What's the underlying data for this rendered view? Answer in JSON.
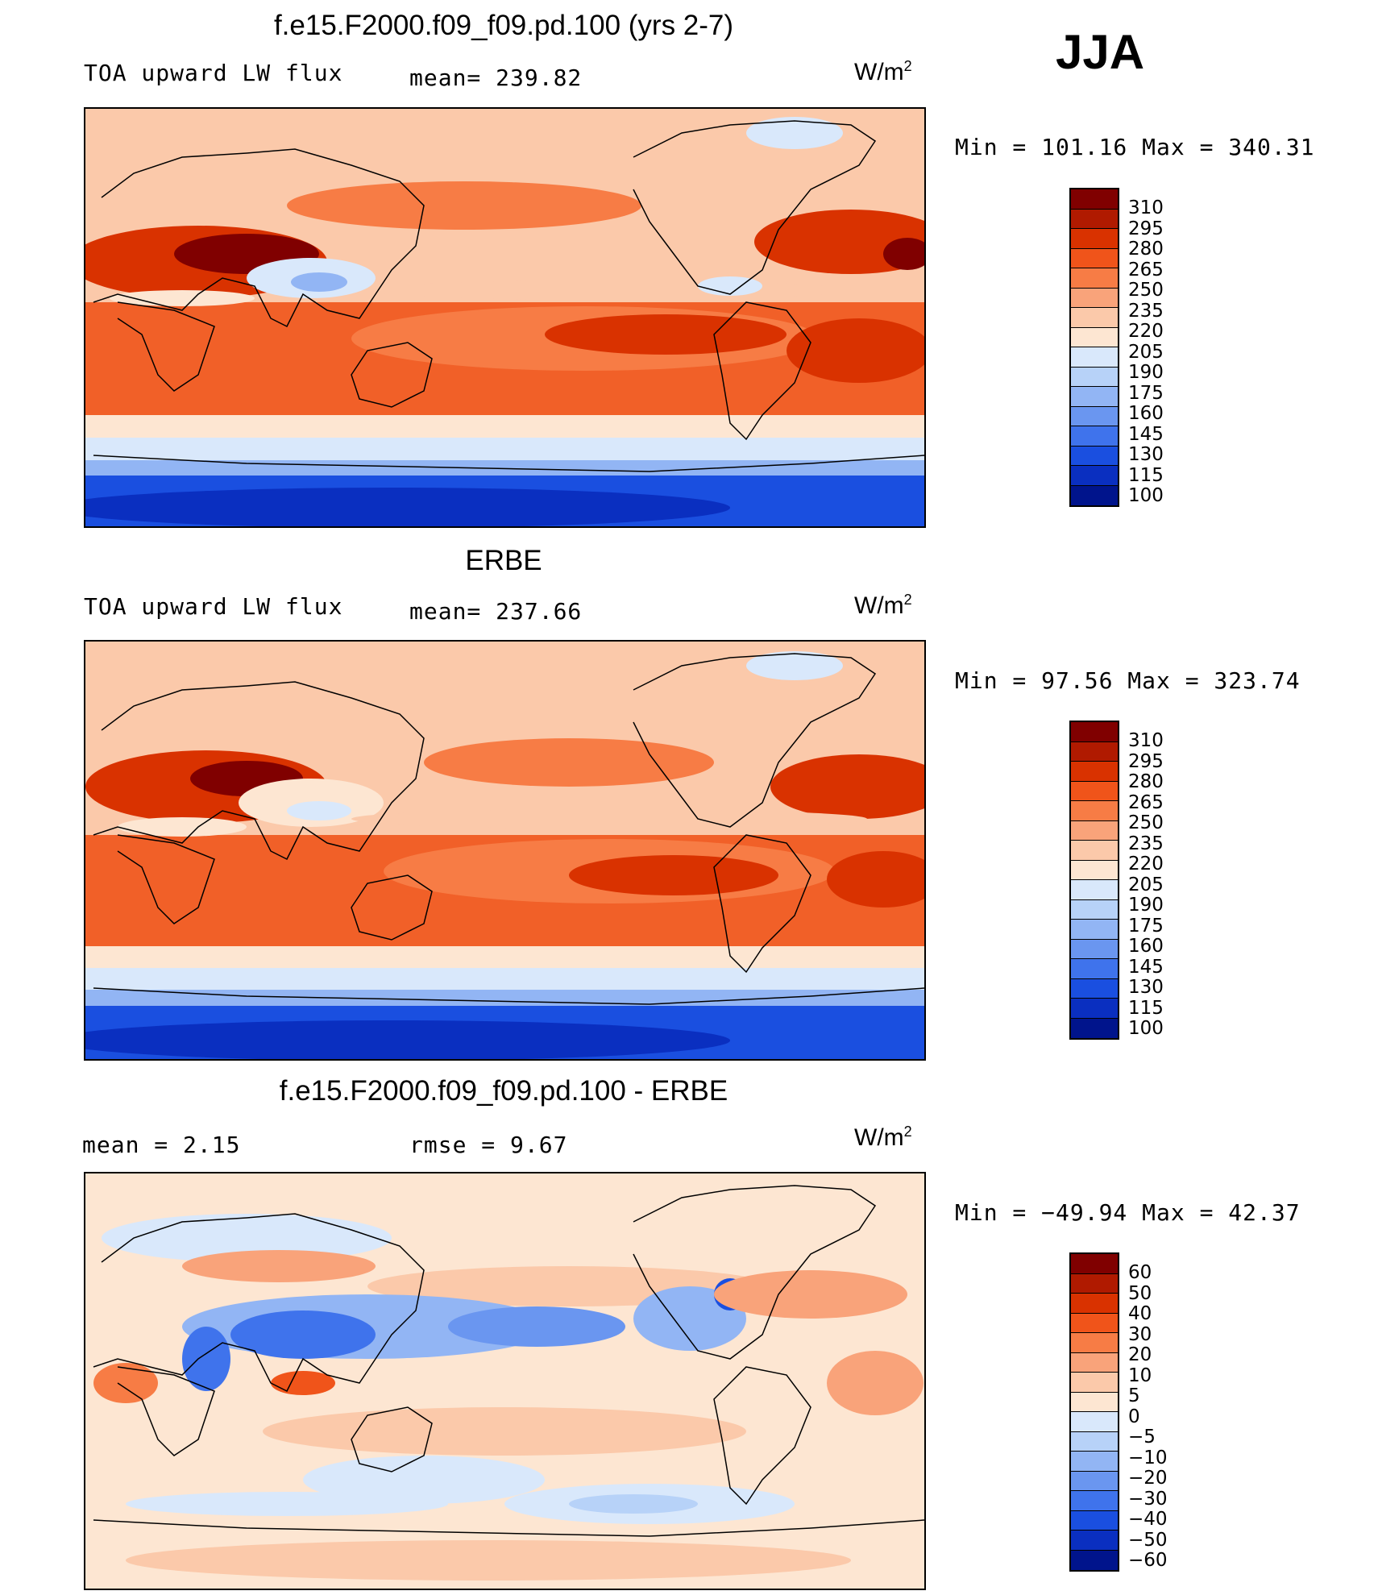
{
  "season": "JJA",
  "panels": [
    {
      "title": "f.e15.F2000.f09_f09.pd.100 (yrs 2-7)",
      "left_label": "TOA upward LW flux",
      "mean_label": "mean= 239.82",
      "units": "W/m",
      "units_exp": "2",
      "minmax": "Min  =  101.16 Max  =  340.31",
      "colorbar_labels": [
        "310",
        "295",
        "280",
        "265",
        "250",
        "235",
        "220",
        "205",
        "190",
        "175",
        "160",
        "145",
        "130",
        "115",
        "100"
      ]
    },
    {
      "title": "ERBE",
      "left_label": "TOA upward LW flux",
      "mean_label": "mean= 237.66",
      "units": "W/m",
      "units_exp": "2",
      "minmax": "Min  =   97.56 Max  =  323.74",
      "colorbar_labels": [
        "310",
        "295",
        "280",
        "265",
        "250",
        "235",
        "220",
        "205",
        "190",
        "175",
        "160",
        "145",
        "130",
        "115",
        "100"
      ]
    },
    {
      "title": "f.e15.F2000.f09_f09.pd.100 - ERBE",
      "left_label": "mean  =     2.15",
      "mean_label": "rmse  =     9.67",
      "units": "W/m",
      "units_exp": "2",
      "minmax": "Min  = −49.94 Max  =   42.37",
      "colorbar_labels": [
        "60",
        "50",
        "40",
        "30",
        "20",
        "10",
        "5",
        "0",
        "−5",
        "−10",
        "−20",
        "−30",
        "−40",
        "−50",
        "−60"
      ]
    }
  ],
  "colors": {
    "abs_scale": [
      "#800000",
      "#b01a00",
      "#d93200",
      "#f0541a",
      "#f77c45",
      "#f9a37a",
      "#fbc9aa",
      "#fde6d2",
      "#d9e8fb",
      "#b7d2f8",
      "#92b5f4",
      "#6a96f0",
      "#3f73ec",
      "#1a4fe0",
      "#0a2fc0",
      "#00148c"
    ],
    "diff_scale": [
      "#800000",
      "#b01a00",
      "#d93200",
      "#f0541a",
      "#f77c45",
      "#f9a37a",
      "#fbc9aa",
      "#fde6d2",
      "#d9e8fb",
      "#b7d2f8",
      "#92b5f4",
      "#6a96f0",
      "#3f73ec",
      "#1a4fe0",
      "#0a2fc0",
      "#00148c"
    ],
    "coastline": "#000000"
  }
}
